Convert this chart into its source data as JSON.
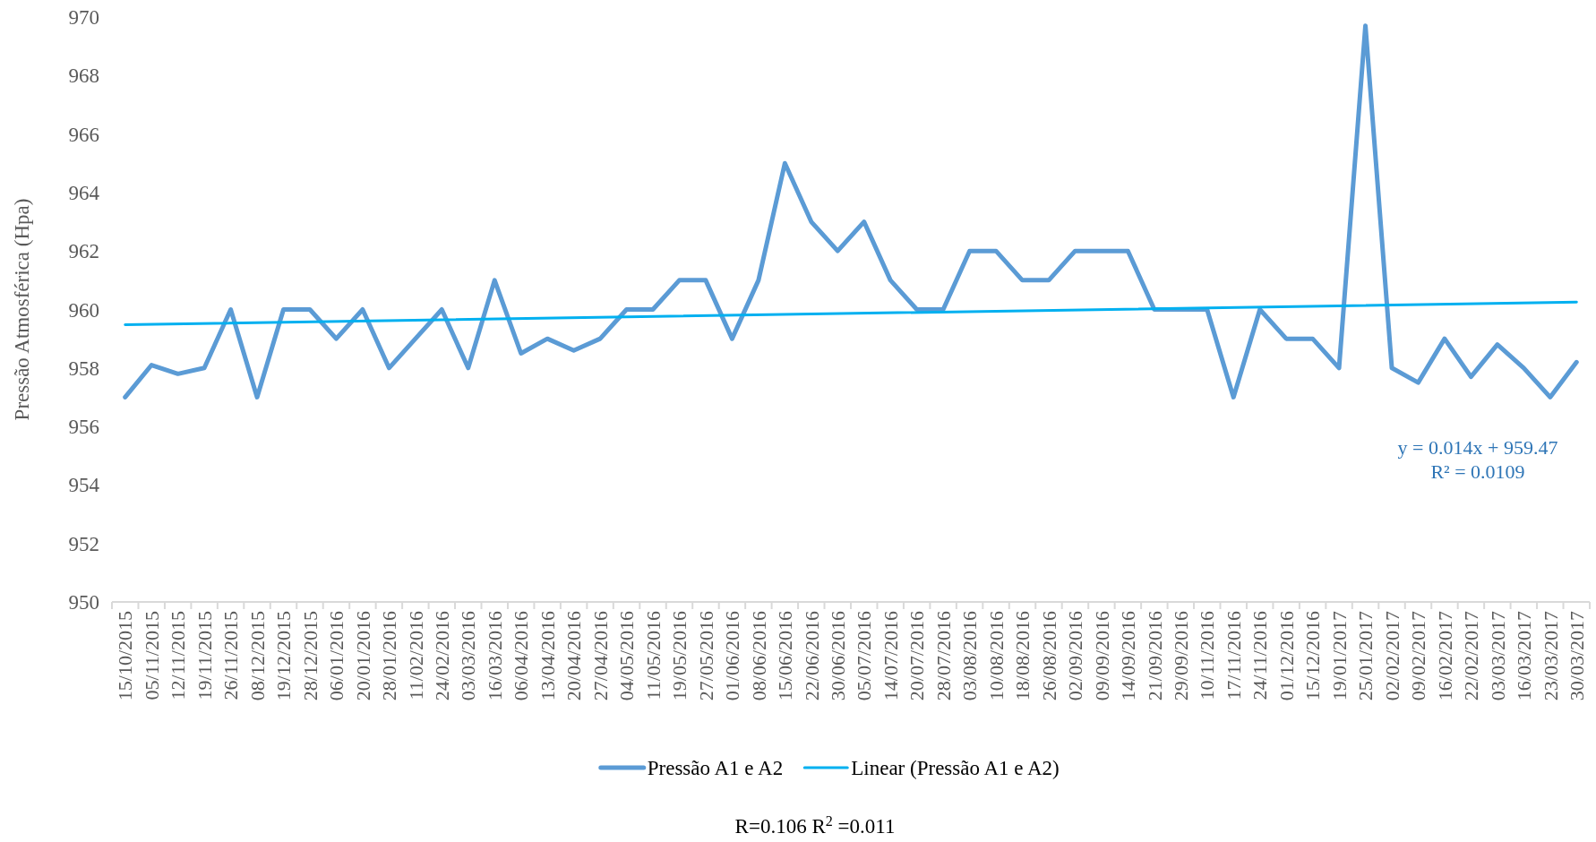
{
  "chart_data": {
    "type": "line",
    "ylabel": "Pressão Atmosférica (Hpa)",
    "categories": [
      "15/10/2015",
      "05/11/2015",
      "12/11/2015",
      "19/11/2015",
      "26/11/2015",
      "08/12/2015",
      "19/12/2015",
      "28/12/2015",
      "06/01/2016",
      "20/01/2016",
      "28/01/2016",
      "11/02/2016",
      "24/02/2016",
      "03/03/2016",
      "16/03/2016",
      "06/04/2016",
      "13/04/2016",
      "20/04/2016",
      "27/04/2016",
      "04/05/2016",
      "11/05/2016",
      "19/05/2016",
      "27/05/2016",
      "01/06/2016",
      "08/06/2016",
      "15/06/2016",
      "22/06/2016",
      "30/06/2016",
      "05/07/2016",
      "14/07/2016",
      "20/07/2016",
      "28/07/2016",
      "03/08/2016",
      "10/08/2016",
      "18/08/2016",
      "26/08/2016",
      "02/09/2016",
      "09/09/2016",
      "14/09/2016",
      "21/09/2016",
      "29/09/2016",
      "10/11/2016",
      "17/11/2016",
      "24/11/2016",
      "01/12/2016",
      "15/12/2016",
      "19/01/2017",
      "25/01/2017",
      "02/02/2017",
      "09/02/2017",
      "16/02/2017",
      "22/02/2017",
      "03/03/2017",
      "16/03/2017",
      "23/03/2017",
      "30/03/2017"
    ],
    "series": [
      {
        "name": "Pressão A1 e A2",
        "color": "#5b9bd5",
        "values": [
          957,
          958.1,
          957.8,
          958,
          960,
          957,
          960,
          960,
          959,
          960,
          958,
          959,
          960,
          958,
          961,
          958.5,
          959,
          958.6,
          959,
          960,
          960,
          961,
          961,
          959,
          961,
          965,
          963,
          962,
          963,
          961,
          960,
          960,
          962,
          962,
          961,
          961,
          962,
          962,
          962,
          960,
          960,
          960,
          957,
          960,
          959,
          959,
          958,
          969.7,
          958,
          957.5,
          959,
          957.7,
          958.8,
          958,
          957,
          958.2
        ]
      },
      {
        "name": "Linear (Pressão A1 e A2)",
        "color": "#00b0f0",
        "x": [
          "15/10/2015",
          "30/03/2017"
        ],
        "values": [
          959.48,
          960.25
        ]
      }
    ],
    "ylim": [
      950,
      970
    ],
    "yticks": [
      950,
      952,
      954,
      956,
      958,
      960,
      962,
      964,
      966,
      968,
      970
    ],
    "grid": false,
    "legend": "bottom",
    "marker": "none",
    "line_style": "solid",
    "annotations": [
      "y = 0.014x + 959.47",
      "R² = 0.0109",
      "R=0.106 R$^{2}$ =0.011"
    ]
  }
}
